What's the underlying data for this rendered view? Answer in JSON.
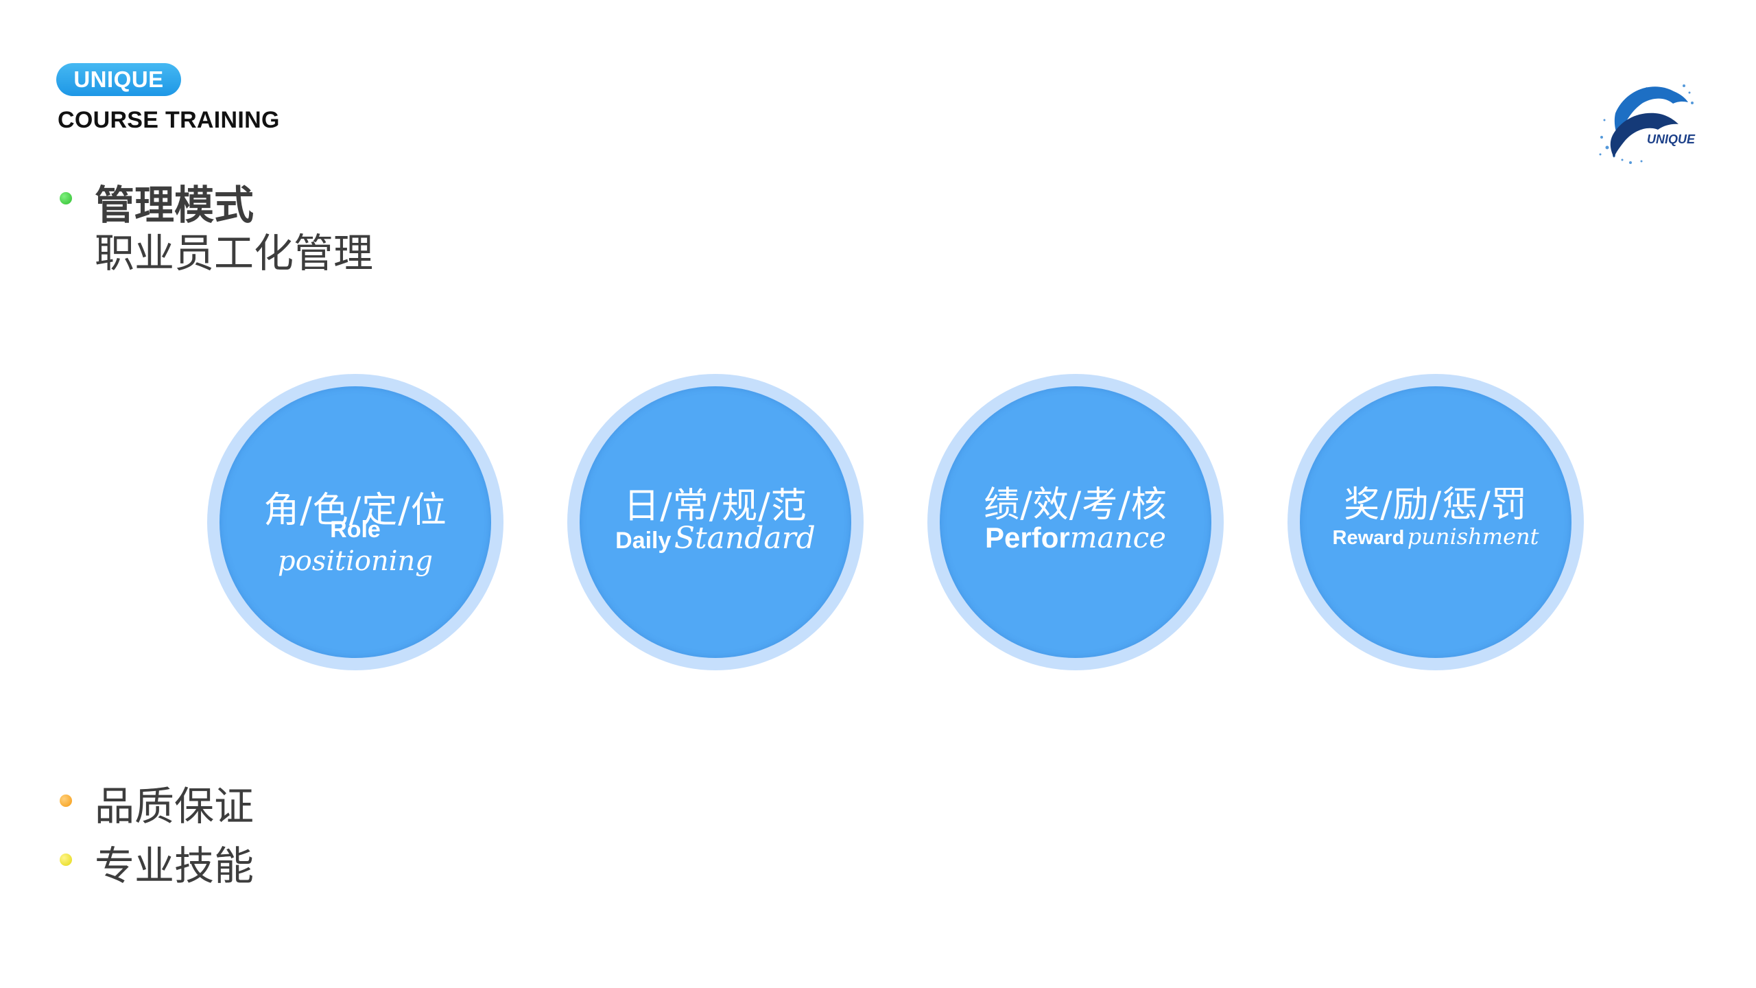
{
  "header": {
    "brand_pill": "UNIQUE",
    "course_title": "COURSE TRAINING",
    "logo_text": "UNIQUE"
  },
  "bullets": {
    "management": {
      "title": "管理模式",
      "subtitle": "职业员工化管理"
    },
    "quality": "品质保证",
    "skill": "专业技能"
  },
  "circles": [
    {
      "cn": "角/色/定/位",
      "en_bold": "Role",
      "en_script": "positioning"
    },
    {
      "cn": "日/常/规/范",
      "en_bold": "Daily",
      "en_script": "Standard"
    },
    {
      "cn": "绩/效/考/核",
      "en_bold": "Perfor",
      "en_script": "mance"
    },
    {
      "cn": "奖/励/惩/罚",
      "en_bold": "Reward",
      "en_script": "punishment"
    }
  ],
  "colors": {
    "brand_blue": "#1e97e6",
    "circle_fill": "#51a8f5",
    "circle_ring": "#c6dffc",
    "text_gray": "#3d3d3d"
  }
}
